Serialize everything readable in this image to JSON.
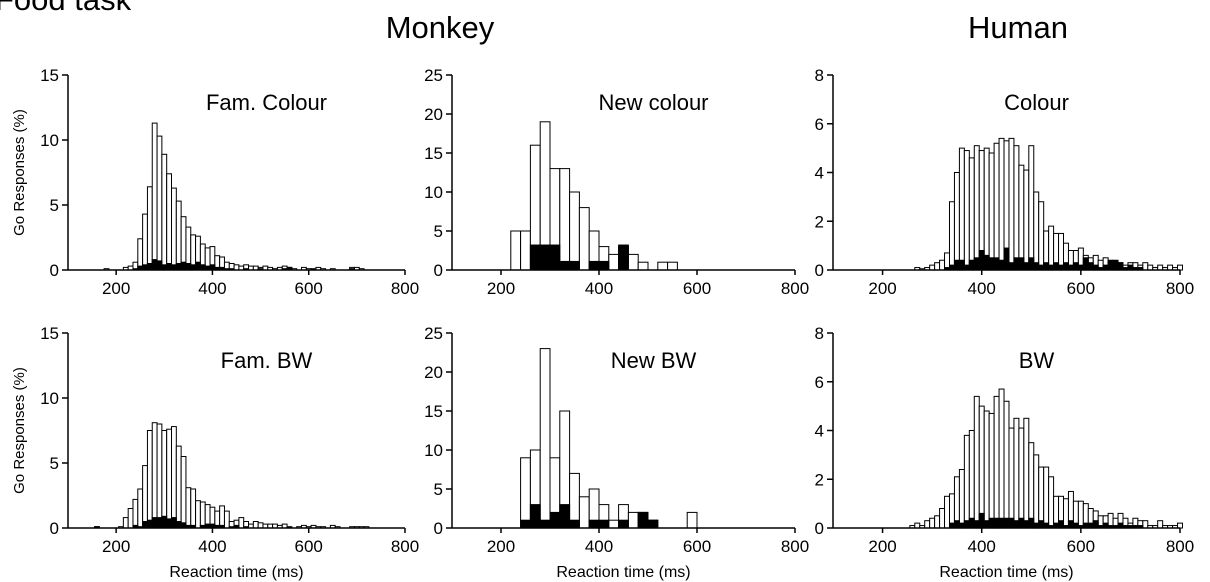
{
  "figure": {
    "cut_title": "Food task",
    "headers": [
      "Monkey",
      "Human"
    ],
    "xlabel": "Reaction time (ms)",
    "ylabel": "Go Responses (%)"
  },
  "chart_data": [
    {
      "type": "bar",
      "title": "Fam. Colour",
      "xlabel": "",
      "ylabel": "Go Responses (%)",
      "xlim": [
        100,
        800
      ],
      "ylim": [
        0,
        15
      ],
      "xticks": [
        200,
        400,
        600,
        800
      ],
      "yticks": [
        0,
        5,
        10,
        15
      ],
      "bin_width": 10,
      "series": [
        {
          "name": "",
          "style": "open",
          "x": [
            180,
            220,
            230,
            240,
            250,
            260,
            270,
            280,
            290,
            300,
            310,
            320,
            330,
            340,
            350,
            360,
            370,
            380,
            390,
            400,
            410,
            420,
            430,
            440,
            450,
            460,
            470,
            480,
            490,
            500,
            510,
            520,
            530,
            540,
            550,
            560,
            570,
            590,
            600,
            620,
            630,
            650,
            690,
            700,
            710
          ],
          "values": [
            0.1,
            0.2,
            0.3,
            0.6,
            2.4,
            4.3,
            6.4,
            11.3,
            10.3,
            8.9,
            7.4,
            6.3,
            5.3,
            4.1,
            3.3,
            2.7,
            2.6,
            2.0,
            1.7,
            1.8,
            1.1,
            1.0,
            0.6,
            0.5,
            0.4,
            0.3,
            0.4,
            0.3,
            0.3,
            0.2,
            0.3,
            0.2,
            0.1,
            0.2,
            0.3,
            0.2,
            0.1,
            0.2,
            0.1,
            0.2,
            0.1,
            0.1,
            0.2,
            0.2,
            0.1
          ]
        },
        {
          "name": "",
          "style": "filled",
          "x": [
            240,
            250,
            260,
            270,
            280,
            290,
            300,
            310,
            320,
            330,
            340,
            350,
            360,
            370,
            380,
            390,
            400,
            410,
            420,
            430,
            440,
            470,
            500,
            550,
            560,
            610,
            690
          ],
          "values": [
            0.1,
            0.3,
            0.4,
            0.5,
            0.8,
            0.7,
            0.4,
            0.5,
            0.4,
            0.5,
            0.6,
            0.5,
            0.4,
            0.6,
            0.4,
            0.3,
            0.4,
            0.2,
            0.2,
            0.1,
            0.1,
            0.1,
            0.1,
            0.1,
            0.2,
            0.1,
            0.1
          ]
        }
      ]
    },
    {
      "type": "bar",
      "title": "New colour",
      "xlabel": "",
      "ylabel": "",
      "xlim": [
        100,
        800
      ],
      "ylim": [
        0,
        25
      ],
      "xticks": [
        200,
        400,
        600,
        800
      ],
      "yticks": [
        0,
        5,
        10,
        15,
        20,
        25
      ],
      "bin_width": 20,
      "series": [
        {
          "name": "",
          "style": "open",
          "x": [
            230,
            250,
            270,
            290,
            310,
            330,
            350,
            370,
            390,
            410,
            430,
            450,
            470,
            490,
            530,
            550
          ],
          "values": [
            5,
            5,
            16,
            19,
            13,
            13,
            10,
            8,
            5,
            3,
            2,
            3,
            2,
            1,
            1,
            1
          ]
        },
        {
          "name": "",
          "style": "filled",
          "x": [
            270,
            290,
            310,
            330,
            350,
            390,
            410,
            450
          ],
          "values": [
            3.2,
            3.2,
            3.2,
            1.1,
            1.1,
            1.1,
            1.1,
            3.2
          ]
        }
      ]
    },
    {
      "type": "bar",
      "title": "Colour",
      "xlabel": "",
      "ylabel": "",
      "xlim": [
        100,
        800
      ],
      "ylim": [
        0,
        8
      ],
      "xticks": [
        200,
        400,
        600,
        800
      ],
      "yticks": [
        0,
        2,
        4,
        6,
        8
      ],
      "bin_width": 10,
      "series": [
        {
          "name": "",
          "style": "open",
          "x": [
            270,
            280,
            290,
            300,
            310,
            320,
            330,
            340,
            350,
            360,
            370,
            380,
            390,
            400,
            410,
            420,
            430,
            440,
            450,
            460,
            470,
            480,
            490,
            500,
            510,
            520,
            530,
            540,
            550,
            560,
            570,
            580,
            590,
            600,
            610,
            620,
            630,
            640,
            650,
            660,
            670,
            680,
            690,
            700,
            710,
            720,
            730,
            740,
            750,
            760,
            770,
            780,
            790,
            800
          ],
          "values": [
            0.1,
            0.05,
            0.1,
            0.2,
            0.3,
            0.4,
            0.7,
            2.8,
            4.0,
            5.0,
            4.9,
            4.6,
            5.1,
            4.9,
            5.0,
            4.8,
            5.2,
            5.4,
            5.3,
            5.4,
            5.1,
            4.3,
            4.1,
            5.1,
            3.2,
            2.8,
            1.6,
            1.8,
            1.5,
            1.5,
            1.1,
            0.8,
            0.8,
            0.9,
            0.6,
            0.5,
            0.6,
            0.4,
            0.5,
            0.3,
            0.2,
            0.3,
            0.2,
            0.3,
            0.3,
            0.2,
            0.3,
            0.2,
            0.1,
            0.2,
            0.1,
            0.2,
            0.1,
            0.2
          ]
        },
        {
          "name": "",
          "style": "filled",
          "x": [
            330,
            340,
            350,
            360,
            370,
            380,
            390,
            400,
            410,
            420,
            430,
            440,
            450,
            460,
            470,
            480,
            490,
            500,
            510,
            520,
            530,
            540,
            550,
            560,
            570,
            580,
            590,
            600,
            610,
            620,
            630,
            640,
            650,
            660,
            670,
            680,
            690,
            700,
            710,
            720
          ],
          "values": [
            0.1,
            0.2,
            0.4,
            0.4,
            0.2,
            0.4,
            0.5,
            0.8,
            0.6,
            0.5,
            0.5,
            0.4,
            0.9,
            0.3,
            0.5,
            0.5,
            0.3,
            0.5,
            0.3,
            0.2,
            0.3,
            0.2,
            0.3,
            0.2,
            0.3,
            0.2,
            0.3,
            0.2,
            0.5,
            0.3,
            0.2,
            0.1,
            0.2,
            0.4,
            0.4,
            0.3,
            0.1,
            0.2,
            0.1,
            0.1
          ]
        }
      ]
    },
    {
      "type": "bar",
      "title": "Fam. BW",
      "xlabel": "Reaction time (ms)",
      "ylabel": "Go Responses (%)",
      "xlim": [
        100,
        800
      ],
      "ylim": [
        0,
        15
      ],
      "xticks": [
        200,
        400,
        600,
        800
      ],
      "yticks": [
        0,
        5,
        10,
        15
      ],
      "bin_width": 10,
      "series": [
        {
          "name": "",
          "style": "open",
          "x": [
            160,
            210,
            220,
            230,
            240,
            250,
            260,
            270,
            280,
            290,
            300,
            310,
            320,
            330,
            340,
            350,
            360,
            370,
            380,
            390,
            400,
            410,
            420,
            430,
            440,
            450,
            460,
            470,
            480,
            490,
            500,
            510,
            520,
            530,
            540,
            550,
            580,
            590,
            600,
            610,
            620,
            630,
            650,
            660,
            690,
            700,
            710,
            720
          ],
          "values": [
            0.1,
            0.1,
            0.8,
            1.5,
            2.2,
            3.0,
            4.8,
            7.5,
            8.1,
            8.0,
            7.5,
            7.6,
            7.8,
            6.3,
            5.5,
            3.1,
            3.0,
            2.1,
            2.0,
            1.8,
            1.6,
            1.3,
            1.7,
            1.3,
            0.5,
            0.6,
            0.8,
            0.5,
            0.3,
            0.5,
            0.4,
            0.3,
            0.3,
            0.3,
            0.2,
            0.3,
            0.1,
            0.2,
            0.1,
            0.2,
            0.1,
            0.1,
            0.2,
            0.1,
            0.1,
            0.1,
            0.1,
            0.1
          ]
        },
        {
          "name": "",
          "style": "filled",
          "x": [
            160,
            240,
            250,
            260,
            270,
            280,
            290,
            300,
            310,
            320,
            330,
            340,
            350,
            360,
            380,
            390,
            400,
            410,
            420,
            440,
            450,
            470,
            560
          ],
          "values": [
            0.1,
            0.2,
            0.1,
            0.5,
            0.6,
            0.8,
            0.8,
            0.9,
            0.7,
            0.8,
            0.5,
            0.4,
            0.2,
            0.2,
            0.2,
            0.3,
            0.3,
            0.2,
            0.2,
            0.1,
            0.2,
            0.1,
            0.1
          ]
        }
      ]
    },
    {
      "type": "bar",
      "title": "New BW",
      "xlabel": "Reaction time (ms)",
      "ylabel": "",
      "xlim": [
        100,
        800
      ],
      "ylim": [
        0,
        25
      ],
      "xticks": [
        200,
        400,
        600,
        800
      ],
      "yticks": [
        0,
        5,
        10,
        15,
        20,
        25
      ],
      "bin_width": 20,
      "series": [
        {
          "name": "",
          "style": "open",
          "x": [
            250,
            270,
            290,
            310,
            330,
            350,
            370,
            390,
            410,
            430,
            450,
            470,
            490,
            510,
            590
          ],
          "values": [
            9,
            10,
            23,
            9,
            15,
            7,
            4,
            5,
            3,
            1,
            3,
            2,
            2,
            1,
            2
          ]
        },
        {
          "name": "",
          "style": "filled",
          "x": [
            250,
            270,
            290,
            310,
            330,
            350,
            390,
            410,
            450,
            490,
            510
          ],
          "values": [
            1,
            3,
            1,
            2,
            3,
            1,
            1,
            1,
            1,
            2,
            1
          ]
        }
      ]
    },
    {
      "type": "bar",
      "title": "BW",
      "xlabel": "Reaction time (ms)",
      "ylabel": "",
      "xlim": [
        100,
        800
      ],
      "ylim": [
        0,
        8
      ],
      "xticks": [
        200,
        400,
        600,
        800
      ],
      "yticks": [
        0,
        2,
        4,
        6,
        8
      ],
      "bin_width": 10,
      "series": [
        {
          "name": "",
          "style": "open",
          "x": [
            260,
            270,
            280,
            290,
            300,
            310,
            320,
            330,
            340,
            350,
            360,
            370,
            380,
            390,
            400,
            410,
            420,
            430,
            440,
            450,
            460,
            470,
            480,
            490,
            500,
            510,
            520,
            530,
            540,
            550,
            560,
            570,
            580,
            590,
            600,
            610,
            620,
            630,
            640,
            650,
            660,
            670,
            680,
            690,
            700,
            710,
            720,
            730,
            740,
            750,
            760,
            770,
            780,
            790,
            800
          ],
          "values": [
            0.1,
            0.2,
            0.1,
            0.3,
            0.4,
            0.5,
            0.8,
            1.3,
            1.4,
            2.1,
            2.4,
            3.8,
            4.0,
            5.4,
            5.0,
            4.8,
            4.7,
            5.4,
            5.7,
            5.2,
            4.1,
            4.5,
            4.1,
            4.5,
            3.5,
            3.0,
            2.5,
            2.5,
            2.1,
            1.3,
            1.3,
            1.2,
            1.5,
            1.1,
            1.1,
            1.0,
            0.8,
            0.7,
            0.5,
            0.5,
            0.6,
            0.4,
            0.6,
            0.4,
            0.2,
            0.4,
            0.3,
            0.3,
            0.1,
            0.1,
            0.3,
            0.1,
            0.1,
            0.1,
            0.2
          ]
        },
        {
          "name": "",
          "style": "filled",
          "x": [
            340,
            350,
            360,
            370,
            380,
            390,
            400,
            410,
            420,
            430,
            440,
            450,
            460,
            470,
            480,
            490,
            500,
            510,
            520,
            530,
            540,
            550,
            560,
            570,
            580,
            590,
            600,
            610,
            620,
            630,
            640,
            650,
            660,
            670,
            680,
            690,
            700,
            710,
            720
          ],
          "values": [
            0.2,
            0.3,
            0.2,
            0.3,
            0.4,
            0.3,
            0.6,
            0.3,
            0.4,
            0.4,
            0.4,
            0.4,
            0.4,
            0.3,
            0.4,
            0.3,
            0.4,
            0.2,
            0.3,
            0.2,
            0.1,
            0.2,
            0.3,
            0.1,
            0.3,
            0.2,
            0.1,
            0.2,
            0.2,
            0.3,
            0.1,
            0.2,
            0.1,
            0.1,
            0.2,
            0.1,
            0.1,
            0.1,
            0.1
          ]
        }
      ]
    }
  ]
}
